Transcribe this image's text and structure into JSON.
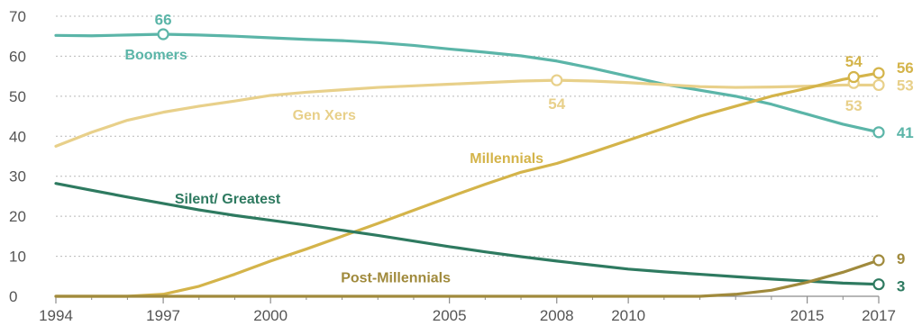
{
  "chart_data": {
    "type": "line",
    "title": "",
    "xlabel": "",
    "ylabel": "",
    "xlim": [
      1994,
      2017
    ],
    "ylim": [
      0,
      70
    ],
    "grid": true,
    "x_ticks": [
      {
        "value": 1994,
        "label": "1994"
      },
      {
        "value": 1997,
        "label": "1997"
      },
      {
        "value": 2000,
        "label": "2000"
      },
      {
        "value": 2005,
        "label": "2005"
      },
      {
        "value": 2008,
        "label": "2008"
      },
      {
        "value": 2010,
        "label": "2010"
      },
      {
        "value": 2015,
        "label": "2015"
      },
      {
        "value": 2017,
        "label": "2017"
      }
    ],
    "x_minor_ticks": [
      1995,
      1996,
      1998,
      1999,
      2001,
      2002,
      2003,
      2004,
      2006,
      2007,
      2009,
      2011,
      2012,
      2013,
      2014,
      2016
    ],
    "y_ticks": [
      {
        "value": 0,
        "label": "0"
      },
      {
        "value": 10,
        "label": "10"
      },
      {
        "value": 20,
        "label": "20"
      },
      {
        "value": 30,
        "label": "30"
      },
      {
        "value": 40,
        "label": "40"
      },
      {
        "value": 50,
        "label": "50"
      },
      {
        "value": 60,
        "label": "60"
      },
      {
        "value": 70,
        "label": "70"
      }
    ],
    "series": [
      {
        "name": "Boomers",
        "color": "#5bb5a8",
        "label_text": "Boomers",
        "label_at": [
          1996.8,
          60.5
        ],
        "points": [
          [
            1994,
            65.2
          ],
          [
            1995,
            65.1
          ],
          [
            1996,
            65.3
          ],
          [
            1997,
            65.5
          ],
          [
            1998,
            65.3
          ],
          [
            1999,
            65.0
          ],
          [
            2000,
            64.6
          ],
          [
            2001,
            64.2
          ],
          [
            2002,
            63.9
          ],
          [
            2003,
            63.4
          ],
          [
            2004,
            62.7
          ],
          [
            2005,
            61.8
          ],
          [
            2006,
            61.0
          ],
          [
            2007,
            60.1
          ],
          [
            2008,
            58.8
          ],
          [
            2009,
            57.0
          ],
          [
            2010,
            55.0
          ],
          [
            2011,
            53.0
          ],
          [
            2012,
            51.5
          ],
          [
            2013,
            50.0
          ],
          [
            2014,
            48.0
          ],
          [
            2015,
            45.5
          ],
          [
            2016,
            43.0
          ],
          [
            2017,
            41.0
          ]
        ],
        "markers": [
          {
            "x": 1997,
            "y": 65.5,
            "label": "66",
            "label_at": [
              1997,
              69.2
            ]
          },
          {
            "x": 2017,
            "y": 41.0,
            "label": "41",
            "label_at": [
              2017.6,
              41.0
            ]
          }
        ]
      },
      {
        "name": "Gen Xers",
        "color": "#e8d08a",
        "label_text": "Gen Xers",
        "label_at": [
          2001.5,
          45.5
        ],
        "points": [
          [
            1994,
            37.5
          ],
          [
            1995,
            41.0
          ],
          [
            1996,
            44.0
          ],
          [
            1997,
            46.0
          ],
          [
            1998,
            47.5
          ],
          [
            1999,
            48.8
          ],
          [
            2000,
            50.2
          ],
          [
            2001,
            51.0
          ],
          [
            2002,
            51.6
          ],
          [
            2003,
            52.2
          ],
          [
            2004,
            52.6
          ],
          [
            2005,
            53.0
          ],
          [
            2006,
            53.4
          ],
          [
            2007,
            53.8
          ],
          [
            2008,
            54.0
          ],
          [
            2009,
            53.8
          ],
          [
            2010,
            53.4
          ],
          [
            2011,
            52.9
          ],
          [
            2012,
            52.4
          ],
          [
            2013,
            52.2
          ],
          [
            2014,
            52.3
          ],
          [
            2015,
            52.5
          ],
          [
            2016,
            52.8
          ],
          [
            2017,
            52.8
          ]
        ],
        "markers": [
          {
            "x": 2008,
            "y": 54.0,
            "label": "54",
            "label_at": [
              2008,
              48.2
            ]
          },
          {
            "x": 2016.3,
            "y": 53.3,
            "label": "53",
            "label_at": [
              2016.3,
              47.7
            ]
          },
          {
            "x": 2017,
            "y": 52.8,
            "label": "53",
            "label_at": [
              2017.6,
              52.8
            ]
          }
        ]
      },
      {
        "name": "Millennials",
        "color": "#d4b44a",
        "label_text": "Millennials",
        "label_at": [
          2006.6,
          34.7
        ],
        "points": [
          [
            1994,
            0.0
          ],
          [
            1995,
            0.0
          ],
          [
            1996,
            0.0
          ],
          [
            1997,
            0.5
          ],
          [
            1998,
            2.5
          ],
          [
            1999,
            5.5
          ],
          [
            2000,
            8.8
          ],
          [
            2001,
            11.8
          ],
          [
            2002,
            15.0
          ],
          [
            2003,
            18.2
          ],
          [
            2004,
            21.5
          ],
          [
            2005,
            24.8
          ],
          [
            2006,
            28.0
          ],
          [
            2007,
            31.0
          ],
          [
            2008,
            33.2
          ],
          [
            2009,
            36.0
          ],
          [
            2010,
            39.0
          ],
          [
            2011,
            42.0
          ],
          [
            2012,
            45.0
          ],
          [
            2013,
            47.5
          ],
          [
            2014,
            50.0
          ],
          [
            2015,
            52.0
          ],
          [
            2016,
            54.2
          ],
          [
            2017,
            55.8
          ]
        ],
        "markers": [
          {
            "x": 2016.3,
            "y": 54.8,
            "label": "54",
            "label_at": [
              2016.3,
              58.7
            ]
          },
          {
            "x": 2017,
            "y": 55.8,
            "label": "56",
            "label_at": [
              2017.6,
              57.2
            ]
          }
        ]
      },
      {
        "name": "Silent/ Greatest",
        "color": "#2e7a60",
        "label_text": "Silent/ Greatest",
        "label_at": [
          1998.8,
          24.5
        ],
        "points": [
          [
            1994,
            28.2
          ],
          [
            1995,
            26.5
          ],
          [
            1996,
            24.8
          ],
          [
            1997,
            23.2
          ],
          [
            1998,
            21.6
          ],
          [
            1999,
            20.2
          ],
          [
            2000,
            19.0
          ],
          [
            2001,
            17.8
          ],
          [
            2002,
            16.5
          ],
          [
            2003,
            15.2
          ],
          [
            2004,
            13.8
          ],
          [
            2005,
            12.4
          ],
          [
            2006,
            11.1
          ],
          [
            2007,
            9.9
          ],
          [
            2008,
            8.8
          ],
          [
            2009,
            7.8
          ],
          [
            2010,
            6.8
          ],
          [
            2011,
            6.1
          ],
          [
            2012,
            5.5
          ],
          [
            2013,
            4.9
          ],
          [
            2014,
            4.3
          ],
          [
            2015,
            3.8
          ],
          [
            2016,
            3.3
          ],
          [
            2017,
            3.0
          ]
        ],
        "markers": [
          {
            "x": 2017,
            "y": 3.0,
            "label": "3",
            "label_at": [
              2017.6,
              2.6
            ]
          }
        ]
      },
      {
        "name": "Post-Millennials",
        "color": "#a08a3c",
        "label_text": "Post-Millennials",
        "label_at": [
          2003.5,
          4.8
        ],
        "points": [
          [
            1994,
            0.0
          ],
          [
            1996,
            0.0
          ],
          [
            1998,
            0.0
          ],
          [
            2000,
            0.0
          ],
          [
            2002,
            0.0
          ],
          [
            2004,
            0.0
          ],
          [
            2006,
            0.0
          ],
          [
            2008,
            0.0
          ],
          [
            2010,
            0.0
          ],
          [
            2012,
            0.0
          ],
          [
            2013,
            0.5
          ],
          [
            2014,
            1.5
          ],
          [
            2015,
            3.5
          ],
          [
            2016,
            6.0
          ],
          [
            2017,
            9.0
          ]
        ],
        "markers": [
          {
            "x": 2017,
            "y": 9.0,
            "label": "9",
            "label_at": [
              2017.6,
              9.5
            ]
          }
        ]
      }
    ]
  }
}
